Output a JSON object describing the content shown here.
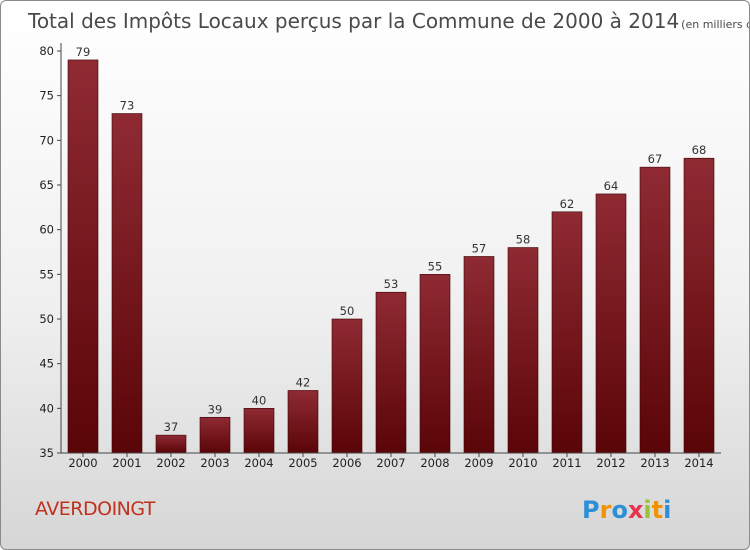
{
  "chart_data": {
    "type": "bar",
    "title": "Total des Impôts Locaux perçus par la Commune de 2000 à 2014",
    "unit": "(en milliers d'€)",
    "categories": [
      "2000",
      "2001",
      "2002",
      "2003",
      "2004",
      "2005",
      "2006",
      "2007",
      "2008",
      "2009",
      "2010",
      "2011",
      "2012",
      "2013",
      "2014"
    ],
    "values": [
      79,
      73,
      37,
      39,
      40,
      42,
      50,
      53,
      55,
      57,
      58,
      62,
      64,
      67,
      68
    ],
    "ylim": [
      35,
      80
    ],
    "yticks": [
      35,
      40,
      45,
      50,
      55,
      60,
      65,
      70,
      75,
      80
    ],
    "xlabel": "",
    "ylabel": "",
    "grid": false,
    "bar_color": "#7a1a22"
  },
  "commune": "AVERDOINGT",
  "brand": {
    "letters": [
      "P",
      "r",
      "o",
      "x",
      "i",
      "t",
      "i"
    ],
    "colors": [
      "#2e8fd6",
      "#f39200",
      "#2e8fd6",
      "#e6334e",
      "#9cc03a",
      "#f39200",
      "#2e8fd6"
    ]
  }
}
